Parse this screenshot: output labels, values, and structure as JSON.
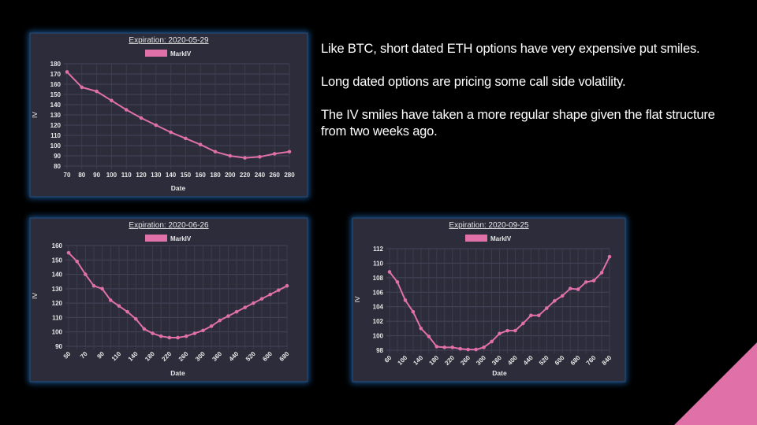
{
  "chart_data": [
    {
      "type": "line",
      "title": "Expiration: 2020-05-29",
      "x_label": "Date",
      "y_label": "IV",
      "categories": [
        "70",
        "80",
        "90",
        "100",
        "110",
        "120",
        "130",
        "140",
        "150",
        "160",
        "180",
        "200",
        "220",
        "240",
        "260",
        "280"
      ],
      "series": [
        {
          "name": "MarkIV",
          "color": "#e070a8",
          "values": [
            172,
            157,
            153,
            144,
            135,
            127,
            120,
            113,
            107,
            101,
            94,
            90,
            88,
            89,
            92,
            94
          ]
        }
      ],
      "ylim": [
        80,
        180
      ],
      "yticks": [
        80,
        90,
        100,
        110,
        120,
        130,
        140,
        150,
        160,
        170,
        180
      ],
      "grid": true
    },
    {
      "type": "line",
      "title": "Expiration: 2020-06-26",
      "x_label": "Date",
      "y_label": "IV",
      "categories": [
        "50",
        null,
        "70",
        null,
        "90",
        null,
        "110",
        null,
        "140",
        null,
        "180",
        null,
        "220",
        null,
        "260",
        null,
        "300",
        null,
        "360",
        null,
        "440",
        null,
        "520",
        null,
        "600",
        null,
        "680"
      ],
      "series": [
        {
          "name": "MarkIV",
          "color": "#e070a8",
          "values": [
            155,
            149,
            140,
            132,
            130,
            122,
            118,
            114,
            109,
            102,
            99,
            97,
            96,
            96,
            97,
            99,
            101,
            104,
            108,
            111,
            114,
            117,
            120,
            123,
            126,
            129,
            132
          ]
        }
      ],
      "ylim": [
        90,
        160
      ],
      "yticks": [
        90,
        100,
        110,
        120,
        130,
        140,
        150,
        160
      ],
      "grid": true
    },
    {
      "type": "line",
      "title": "Expiration: 2020-09-25",
      "x_label": "Date",
      "y_label": "IV",
      "categories": [
        "60",
        null,
        "100",
        null,
        "140",
        null,
        "180",
        null,
        "220",
        null,
        "260",
        null,
        "300",
        null,
        "360",
        null,
        "400",
        null,
        "440",
        null,
        "520",
        null,
        "600",
        null,
        "680",
        null,
        "760",
        null,
        "840"
      ],
      "series": [
        {
          "name": "MarkIV",
          "color": "#e070a8",
          "values": [
            108.8,
            107.4,
            104.9,
            103.3,
            101,
            99.9,
            98.5,
            98.4,
            98.4,
            98.2,
            98.1,
            98.1,
            98.4,
            99.2,
            100.3,
            100.7,
            100.7,
            101.7,
            102.8,
            102.8,
            103.8,
            104.8,
            105.5,
            106.5,
            106.4,
            107.4,
            107.6,
            108.7,
            110.9
          ]
        }
      ],
      "ylim": [
        98,
        112
      ],
      "yticks": [
        98,
        100,
        102,
        104,
        106,
        108,
        110,
        112
      ],
      "grid": true
    }
  ],
  "text": {
    "paragraphs": [
      "Like BTC, short dated ETH options have very expensive put smiles.",
      "Long dated options are pricing some call side volatility.",
      "The IV smiles have taken a more regular shape given the flat structure from two weeks ago."
    ]
  }
}
